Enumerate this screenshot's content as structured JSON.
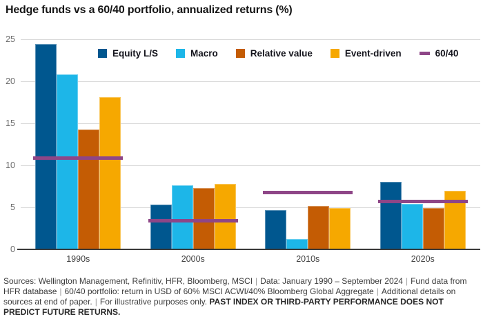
{
  "title": "Hedge funds vs a 60/40 portfolio, annualized returns (%)",
  "colors": {
    "equity_ls": "#00578f",
    "macro": "#1db6e8",
    "relative_value": "#c45c04",
    "event_driven": "#f6a800",
    "sixty_forty": "#8e4687",
    "gridline": "#d9d9d9",
    "axis": "#3a3a3a"
  },
  "chart_data": {
    "type": "bar",
    "title": "Hedge funds vs a 60/40 portfolio, annualized returns (%)",
    "categories": [
      "1990s",
      "2000s",
      "2010s",
      "2020s"
    ],
    "series": [
      {
        "name": "Equity L/S",
        "color": "#00578f",
        "values": [
          24.4,
          5.3,
          4.7,
          8.0
        ]
      },
      {
        "name": "Macro",
        "color": "#1db6e8",
        "values": [
          20.8,
          7.6,
          1.2,
          5.4
        ]
      },
      {
        "name": "Relative value",
        "color": "#c45c04",
        "values": [
          14.3,
          7.3,
          5.2,
          4.9
        ]
      },
      {
        "name": "Event-driven",
        "color": "#f6a800",
        "values": [
          18.1,
          7.8,
          4.9,
          7.0
        ]
      }
    ],
    "benchmark_series": {
      "name": "60/40",
      "color": "#8e4687",
      "values": [
        10.9,
        3.4,
        6.8,
        5.7
      ]
    },
    "xlabel": "",
    "ylabel": "",
    "ylim": [
      0,
      25
    ],
    "yticks": [
      0,
      5,
      10,
      15,
      20,
      25
    ],
    "grid": true,
    "legend_position": "top"
  },
  "footer": {
    "segments": [
      {
        "text": "Sources: Wellington Management, Refinitiv, HFR, Bloomberg, MSCI",
        "bold": false
      },
      {
        "text": "Data: January 1990 – September 2024",
        "bold": false
      },
      {
        "text": "Fund data from HFR database",
        "bold": false
      },
      {
        "text": "60/40 portfolio: return in USD of 60% MSCI ACWI/40% Bloomberg Global Aggregate",
        "bold": false
      },
      {
        "text": "Additional details on sources at end of paper.",
        "bold": false
      },
      {
        "text": "For illustrative purposes only.",
        "bold": false
      }
    ],
    "disclaimer_bold": "PAST INDEX OR THIRD-PARTY PERFORMANCE DOES NOT PREDICT FUTURE RETURNS."
  }
}
